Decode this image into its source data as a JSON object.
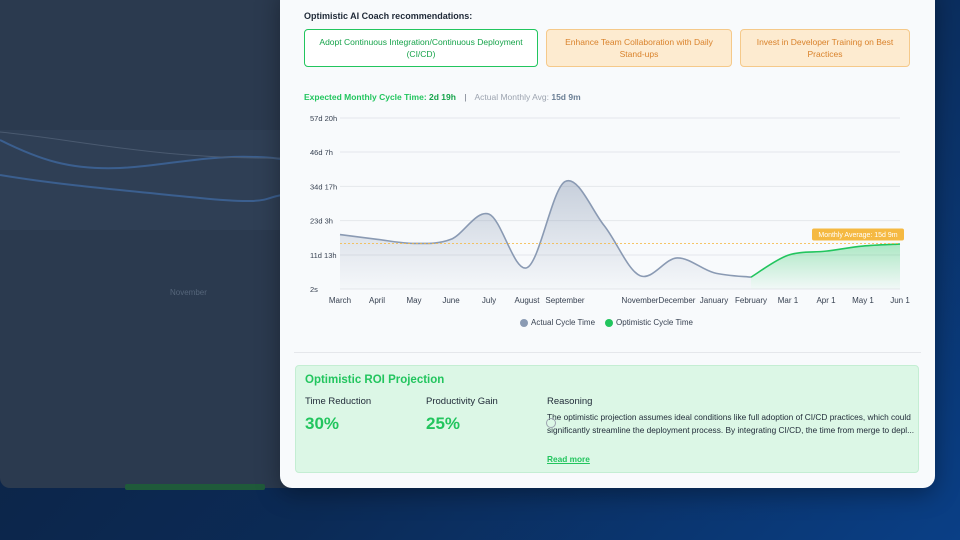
{
  "recommendations": {
    "title": "Optimistic AI Coach recommendations:",
    "items": [
      {
        "label": "Adopt Continuous Integration/Continuous Deployment (CI/CD)"
      },
      {
        "label": "Enhance Team Collaboration with Daily Stand-ups"
      },
      {
        "label": "Invest in Developer Training on Best Practices"
      }
    ]
  },
  "cycle_summary": {
    "expected_label": "Expected Monthly Cycle Time:",
    "expected_value": "2d 19h",
    "separator": "|",
    "actual_label": "Actual Monthly Avg:",
    "actual_value": "15d 9m"
  },
  "colors": {
    "actual": "#8a9ab3",
    "optimistic": "#22c55e",
    "average_line": "#f5b942",
    "accent": "#22c55e",
    "warning_bg": "#fdebd0"
  },
  "chart_data": {
    "type": "line",
    "title": "",
    "xlabel": "",
    "ylabel": "",
    "y_unit": "days",
    "yticks": [
      {
        "value": 0,
        "label": "2s"
      },
      {
        "value": 11.5,
        "label": "11d 13h"
      },
      {
        "value": 23.1,
        "label": "23d 3h"
      },
      {
        "value": 34.7,
        "label": "34d 17h"
      },
      {
        "value": 46.3,
        "label": "46d 7h"
      },
      {
        "value": 57.8,
        "label": "57d 20h"
      }
    ],
    "ylim": [
      0,
      57.8
    ],
    "categories": [
      "March",
      "April",
      "May",
      "June",
      "July",
      "August",
      "September",
      "",
      "November",
      "December",
      "January",
      "February",
      "Mar 1",
      "Apr 1",
      "May 1",
      "Jun 1"
    ],
    "series": [
      {
        "name": "Actual Cycle Time",
        "color": "#8a9ab3",
        "values": [
          18.4,
          16.8,
          15.4,
          16.8,
          25.3,
          7.2,
          36.3,
          21.5,
          4.5,
          10.5,
          5.5,
          4.0,
          null,
          null,
          null,
          null
        ]
      },
      {
        "name": "Optimistic Cycle Time",
        "color": "#22c55e",
        "values": [
          null,
          null,
          null,
          null,
          null,
          null,
          null,
          null,
          null,
          null,
          null,
          4.0,
          11.4,
          12.8,
          14.5,
          15.2
        ]
      }
    ],
    "reference_line": {
      "value": 15.4,
      "label": "Monthly Average: 15d 9m"
    },
    "legend": "bottom",
    "grid": true
  },
  "roi": {
    "title": "Optimistic ROI Projection",
    "time_reduction_label": "Time Reduction",
    "time_reduction_value": "30%",
    "productivity_label": "Productivity Gain",
    "productivity_value": "25%",
    "reasoning_label": "Reasoning",
    "reasoning_text": "The optimistic projection assumes ideal conditions like full adoption of CI/CD practices, which could significantly streamline the deployment process. By integrating CI/CD, the time from merge to depl...",
    "read_more": "Read more"
  },
  "background_app": {
    "month_label": "November"
  }
}
